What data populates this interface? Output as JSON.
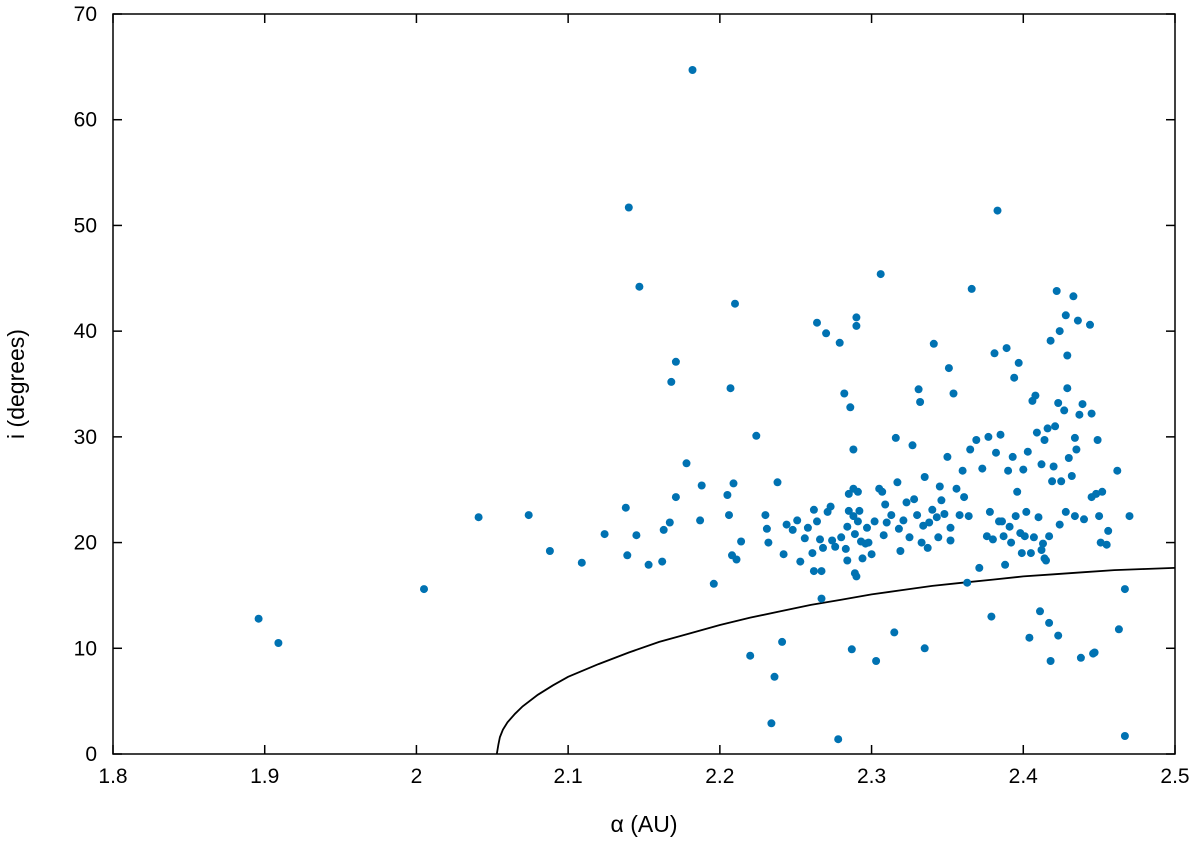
{
  "chart_data": {
    "type": "scatter",
    "title": "",
    "xlabel": "α (AU)",
    "ylabel": "i (degrees)",
    "xlim": [
      1.8,
      2.5
    ],
    "ylim": [
      0,
      70
    ],
    "xticks": [
      "1.8",
      "1.9",
      "2",
      "2.1",
      "2.2",
      "2.3",
      "2.4",
      "2.5"
    ],
    "yticks": [
      "0",
      "10",
      "20",
      "30",
      "40",
      "50",
      "60",
      "70"
    ],
    "grid": false,
    "legend": "none",
    "colors": {
      "points": "#0072b2",
      "curve": "#000000"
    },
    "series": [
      {
        "kind": "points",
        "points": [
          [
            1.896,
            12.8
          ],
          [
            1.909,
            10.5
          ],
          [
            2.005,
            15.6
          ],
          [
            2.041,
            22.4
          ],
          [
            2.074,
            22.6
          ],
          [
            2.088,
            19.2
          ],
          [
            2.109,
            18.1
          ],
          [
            2.124,
            20.8
          ],
          [
            2.138,
            23.3
          ],
          [
            2.139,
            18.8
          ],
          [
            2.14,
            51.7
          ],
          [
            2.145,
            20.7
          ],
          [
            2.147,
            44.2
          ],
          [
            2.153,
            17.9
          ],
          [
            2.162,
            18.2
          ],
          [
            2.163,
            21.2
          ],
          [
            2.167,
            21.9
          ],
          [
            2.168,
            35.2
          ],
          [
            2.171,
            37.1
          ],
          [
            2.171,
            24.3
          ],
          [
            2.178,
            27.5
          ],
          [
            2.182,
            64.7
          ],
          [
            2.187,
            22.1
          ],
          [
            2.188,
            25.4
          ],
          [
            2.196,
            16.1
          ],
          [
            2.205,
            24.5
          ],
          [
            2.206,
            22.6
          ],
          [
            2.207,
            34.6
          ],
          [
            2.208,
            18.8
          ],
          [
            2.209,
            25.6
          ],
          [
            2.21,
            42.6
          ],
          [
            2.211,
            18.4
          ],
          [
            2.214,
            20.1
          ],
          [
            2.22,
            9.3
          ],
          [
            2.224,
            30.1
          ],
          [
            2.23,
            22.6
          ],
          [
            2.231,
            21.3
          ],
          [
            2.232,
            20.0
          ],
          [
            2.234,
            2.9
          ],
          [
            2.236,
            7.3
          ],
          [
            2.238,
            25.7
          ],
          [
            2.241,
            10.6
          ],
          [
            2.242,
            18.9
          ],
          [
            2.244,
            21.7
          ],
          [
            2.248,
            21.2
          ],
          [
            2.251,
            22.1
          ],
          [
            2.253,
            18.2
          ],
          [
            2.256,
            20.4
          ],
          [
            2.258,
            21.4
          ],
          [
            2.261,
            19.0
          ],
          [
            2.262,
            17.3
          ],
          [
            2.262,
            23.1
          ],
          [
            2.264,
            22.0
          ],
          [
            2.264,
            40.8
          ],
          [
            2.266,
            20.3
          ],
          [
            2.267,
            17.3
          ],
          [
            2.267,
            14.7
          ],
          [
            2.268,
            19.5
          ],
          [
            2.27,
            39.8
          ],
          [
            2.271,
            22.9
          ],
          [
            2.273,
            23.4
          ],
          [
            2.274,
            20.2
          ],
          [
            2.276,
            19.6
          ],
          [
            2.278,
            1.4
          ],
          [
            2.279,
            38.9
          ],
          [
            2.28,
            20.5
          ],
          [
            2.282,
            34.1
          ],
          [
            2.283,
            19.4
          ],
          [
            2.284,
            21.5
          ],
          [
            2.284,
            18.3
          ],
          [
            2.285,
            23.0
          ],
          [
            2.285,
            24.6
          ],
          [
            2.286,
            32.8
          ],
          [
            2.287,
            9.9
          ],
          [
            2.288,
            28.8
          ],
          [
            2.288,
            22.5
          ],
          [
            2.288,
            25.1
          ],
          [
            2.289,
            17.1
          ],
          [
            2.289,
            20.8
          ],
          [
            2.29,
            41.3
          ],
          [
            2.29,
            40.5
          ],
          [
            2.29,
            16.8
          ],
          [
            2.291,
            24.8
          ],
          [
            2.291,
            22.0
          ],
          [
            2.292,
            23.0
          ],
          [
            2.293,
            20.1
          ],
          [
            2.294,
            18.5
          ],
          [
            2.296,
            19.9
          ],
          [
            2.297,
            21.4
          ],
          [
            2.298,
            20.0
          ],
          [
            2.3,
            18.9
          ],
          [
            2.302,
            22.0
          ],
          [
            2.303,
            8.8
          ],
          [
            2.305,
            25.1
          ],
          [
            2.306,
            45.4
          ],
          [
            2.307,
            24.8
          ],
          [
            2.308,
            20.7
          ],
          [
            2.309,
            23.6
          ],
          [
            2.31,
            21.9
          ],
          [
            2.313,
            22.6
          ],
          [
            2.315,
            11.5
          ],
          [
            2.316,
            29.9
          ],
          [
            2.317,
            25.7
          ],
          [
            2.318,
            21.3
          ],
          [
            2.319,
            19.2
          ],
          [
            2.321,
            22.1
          ],
          [
            2.323,
            23.8
          ],
          [
            2.325,
            20.5
          ],
          [
            2.327,
            29.2
          ],
          [
            2.328,
            24.1
          ],
          [
            2.33,
            22.6
          ],
          [
            2.331,
            34.5
          ],
          [
            2.332,
            33.3
          ],
          [
            2.333,
            20.0
          ],
          [
            2.334,
            21.6
          ],
          [
            2.335,
            10.0
          ],
          [
            2.335,
            26.2
          ],
          [
            2.337,
            19.5
          ],
          [
            2.338,
            21.9
          ],
          [
            2.34,
            23.1
          ],
          [
            2.341,
            38.8
          ],
          [
            2.343,
            22.4
          ],
          [
            2.344,
            20.5
          ],
          [
            2.345,
            25.3
          ],
          [
            2.346,
            24.0
          ],
          [
            2.348,
            22.7
          ],
          [
            2.35,
            28.1
          ],
          [
            2.351,
            36.5
          ],
          [
            2.352,
            21.4
          ],
          [
            2.352,
            20.2
          ],
          [
            2.354,
            34.1
          ],
          [
            2.356,
            25.1
          ],
          [
            2.358,
            22.6
          ],
          [
            2.36,
            26.8
          ],
          [
            2.361,
            24.3
          ],
          [
            2.363,
            16.2
          ],
          [
            2.364,
            22.5
          ],
          [
            2.365,
            28.8
          ],
          [
            2.366,
            44.0
          ],
          [
            2.369,
            29.7
          ],
          [
            2.371,
            17.6
          ],
          [
            2.373,
            27.0
          ],
          [
            2.376,
            20.6
          ],
          [
            2.377,
            30.0
          ],
          [
            2.378,
            22.9
          ],
          [
            2.379,
            13.0
          ],
          [
            2.38,
            20.3
          ],
          [
            2.381,
            37.9
          ],
          [
            2.382,
            28.5
          ],
          [
            2.383,
            51.4
          ],
          [
            2.384,
            22.0
          ],
          [
            2.385,
            30.2
          ],
          [
            2.386,
            22.0
          ],
          [
            2.387,
            20.6
          ],
          [
            2.388,
            17.9
          ],
          [
            2.389,
            38.4
          ],
          [
            2.39,
            26.8
          ],
          [
            2.391,
            21.5
          ],
          [
            2.392,
            20.0
          ],
          [
            2.393,
            28.1
          ],
          [
            2.394,
            35.6
          ],
          [
            2.395,
            22.5
          ],
          [
            2.396,
            24.8
          ],
          [
            2.397,
            37.0
          ],
          [
            2.398,
            20.9
          ],
          [
            2.399,
            19.0
          ],
          [
            2.4,
            26.9
          ],
          [
            2.401,
            20.6
          ],
          [
            2.402,
            22.9
          ],
          [
            2.403,
            28.6
          ],
          [
            2.404,
            11.0
          ],
          [
            2.405,
            19.0
          ],
          [
            2.406,
            33.4
          ],
          [
            2.407,
            20.5
          ],
          [
            2.408,
            33.9
          ],
          [
            2.409,
            30.4
          ],
          [
            2.41,
            22.4
          ],
          [
            2.411,
            13.5
          ],
          [
            2.412,
            27.4
          ],
          [
            2.412,
            19.3
          ],
          [
            2.413,
            19.9
          ],
          [
            2.414,
            29.7
          ],
          [
            2.414,
            18.5
          ],
          [
            2.415,
            18.3
          ],
          [
            2.416,
            30.8
          ],
          [
            2.417,
            12.4
          ],
          [
            2.417,
            20.6
          ],
          [
            2.418,
            39.1
          ],
          [
            2.418,
            8.8
          ],
          [
            2.419,
            25.8
          ],
          [
            2.42,
            27.2
          ],
          [
            2.421,
            31.0
          ],
          [
            2.422,
            43.8
          ],
          [
            2.423,
            33.2
          ],
          [
            2.423,
            11.2
          ],
          [
            2.424,
            21.7
          ],
          [
            2.424,
            40.0
          ],
          [
            2.425,
            25.8
          ],
          [
            2.427,
            32.5
          ],
          [
            2.428,
            22.9
          ],
          [
            2.428,
            41.5
          ],
          [
            2.429,
            37.7
          ],
          [
            2.429,
            34.6
          ],
          [
            2.43,
            28.0
          ],
          [
            2.432,
            26.3
          ],
          [
            2.433,
            43.3
          ],
          [
            2.434,
            22.5
          ],
          [
            2.434,
            29.9
          ],
          [
            2.435,
            28.8
          ],
          [
            2.436,
            41.0
          ],
          [
            2.437,
            32.1
          ],
          [
            2.438,
            9.1
          ],
          [
            2.439,
            33.1
          ],
          [
            2.44,
            22.2
          ],
          [
            2.444,
            40.6
          ],
          [
            2.445,
            32.2
          ],
          [
            2.445,
            24.3
          ],
          [
            2.446,
            9.5
          ],
          [
            2.447,
            9.6
          ],
          [
            2.448,
            24.6
          ],
          [
            2.449,
            29.7
          ],
          [
            2.45,
            22.5
          ],
          [
            2.451,
            20.0
          ],
          [
            2.452,
            24.8
          ],
          [
            2.455,
            19.8
          ],
          [
            2.456,
            21.1
          ],
          [
            2.462,
            26.8
          ],
          [
            2.463,
            11.8
          ],
          [
            2.467,
            15.6
          ],
          [
            2.467,
            1.7
          ],
          [
            2.47,
            22.5
          ]
        ]
      },
      {
        "kind": "curve",
        "points": [
          [
            2.053,
            0.0
          ],
          [
            2.054,
            0.9
          ],
          [
            2.055,
            1.6
          ],
          [
            2.057,
            2.3
          ],
          [
            2.06,
            3.0
          ],
          [
            2.065,
            3.8
          ],
          [
            2.07,
            4.5
          ],
          [
            2.08,
            5.6
          ],
          [
            2.09,
            6.5
          ],
          [
            2.1,
            7.3
          ],
          [
            2.12,
            8.5
          ],
          [
            2.14,
            9.6
          ],
          [
            2.16,
            10.6
          ],
          [
            2.18,
            11.4
          ],
          [
            2.2,
            12.2
          ],
          [
            2.22,
            12.9
          ],
          [
            2.24,
            13.5
          ],
          [
            2.26,
            14.1
          ],
          [
            2.28,
            14.6
          ],
          [
            2.3,
            15.1
          ],
          [
            2.32,
            15.5
          ],
          [
            2.34,
            15.9
          ],
          [
            2.36,
            16.2
          ],
          [
            2.38,
            16.5
          ],
          [
            2.4,
            16.8
          ],
          [
            2.42,
            17.0
          ],
          [
            2.44,
            17.2
          ],
          [
            2.46,
            17.4
          ],
          [
            2.48,
            17.5
          ],
          [
            2.5,
            17.6
          ]
        ]
      }
    ]
  }
}
